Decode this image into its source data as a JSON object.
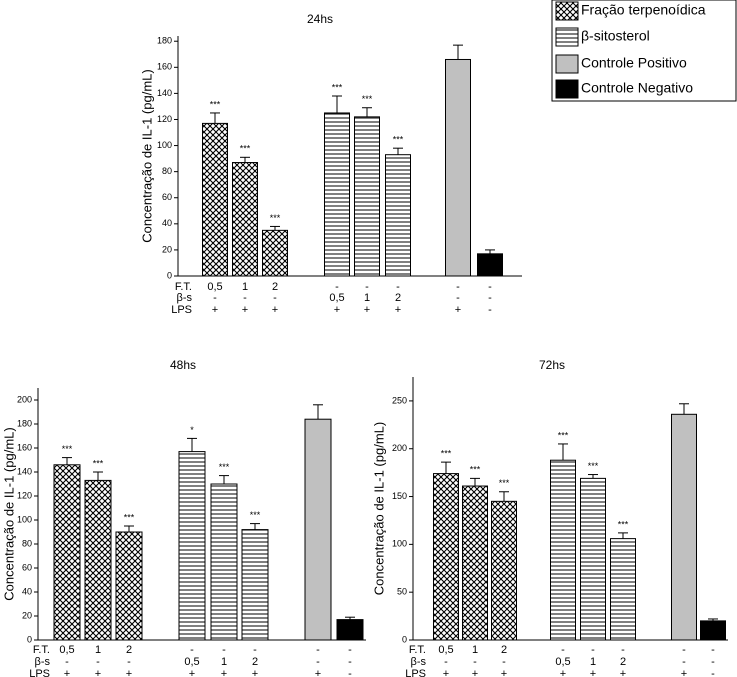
{
  "chart_data": [
    {
      "type": "bar",
      "title": "24hs",
      "y_label": "Concentração de IL-1 (pg/mL)",
      "ylim": [
        0,
        184
      ],
      "yticks": [
        0,
        20,
        40,
        60,
        80,
        100,
        120,
        140,
        160,
        180
      ],
      "series": [
        {
          "name": "Fração terpenoídica",
          "pattern": "crosshatch",
          "color": "#000000",
          "values": [
            117,
            87,
            35
          ],
          "errors": [
            8,
            4,
            3
          ],
          "annotations": [
            "***",
            "***",
            "***"
          ]
        },
        {
          "name": "β-sitosterol",
          "pattern": "hlines",
          "color": "#000000",
          "values": [
            125,
            122,
            93
          ],
          "errors": [
            13,
            7,
            5
          ],
          "annotations": [
            "***",
            "***",
            "***"
          ]
        },
        {
          "name": "Controle Positivo",
          "pattern": "solid",
          "color": "#c0c0c0",
          "values": [
            166
          ],
          "errors": [
            11
          ],
          "annotations": [
            null
          ]
        },
        {
          "name": "Controle Negativo",
          "pattern": "solid",
          "color": "#000000",
          "values": [
            17
          ],
          "errors": [
            3
          ],
          "annotations": [
            null
          ]
        }
      ],
      "treatment_rows": [
        {
          "label": "F.T.",
          "values": [
            "0,5",
            "1",
            "2",
            "-",
            "-",
            "-",
            "-",
            "-"
          ]
        },
        {
          "label": "β-s",
          "values": [
            "-",
            "-",
            "-",
            "0,5",
            "1",
            "2",
            "-",
            "-"
          ]
        },
        {
          "label": "LPS",
          "values": [
            "+",
            "+",
            "+",
            "+",
            "+",
            "+",
            "+",
            "-"
          ]
        }
      ]
    },
    {
      "type": "bar",
      "title": "48hs",
      "y_label": "Concentração de IL-1 (pg/mL)",
      "ylim": [
        0,
        210
      ],
      "yticks": [
        0,
        20,
        40,
        60,
        80,
        100,
        120,
        140,
        160,
        180,
        200
      ],
      "series": [
        {
          "pattern": "crosshatch",
          "color": "#000000",
          "values": [
            146,
            133,
            90
          ],
          "errors": [
            6,
            7,
            5
          ],
          "annotations": [
            "***",
            "***",
            "***"
          ]
        },
        {
          "pattern": "hlines",
          "color": "#000000",
          "values": [
            157,
            130,
            92
          ],
          "errors": [
            11,
            7,
            5
          ],
          "annotations": [
            "*",
            "***",
            "***"
          ]
        },
        {
          "pattern": "solid",
          "color": "#c0c0c0",
          "values": [
            184
          ],
          "errors": [
            12
          ],
          "annotations": [
            null
          ]
        },
        {
          "pattern": "solid",
          "color": "#000000",
          "values": [
            17
          ],
          "errors": [
            2
          ],
          "annotations": [
            null
          ]
        }
      ],
      "treatment_rows": [
        {
          "label": "F.T.",
          "values": [
            "0,5",
            "1",
            "2",
            "-",
            "-",
            "-",
            "-",
            "-"
          ]
        },
        {
          "label": "β-s",
          "values": [
            "-",
            "-",
            "-",
            "0,5",
            "1",
            "2",
            "-",
            "-"
          ]
        },
        {
          "label": "LPS",
          "values": [
            "+",
            "+",
            "+",
            "+",
            "+",
            "+",
            "+",
            "-"
          ]
        }
      ]
    },
    {
      "type": "bar",
      "title": "72hs",
      "y_label": "Concentração de IL-1 (pg/mL)",
      "ylim": [
        0,
        275
      ],
      "yticks": [
        0,
        50,
        100,
        150,
        200,
        250
      ],
      "series": [
        {
          "pattern": "crosshatch",
          "color": "#000000",
          "values": [
            174,
            161,
            145
          ],
          "errors": [
            12,
            8,
            10
          ],
          "annotations": [
            "***",
            "***",
            "***"
          ]
        },
        {
          "pattern": "hlines",
          "color": "#000000",
          "values": [
            188,
            169,
            106
          ],
          "errors": [
            17,
            4,
            6
          ],
          "annotations": [
            "***",
            "***",
            "***"
          ]
        },
        {
          "pattern": "solid",
          "color": "#c0c0c0",
          "values": [
            236
          ],
          "errors": [
            11
          ],
          "annotations": [
            null
          ]
        },
        {
          "pattern": "solid",
          "color": "#000000",
          "values": [
            20
          ],
          "errors": [
            2
          ],
          "annotations": [
            null
          ]
        }
      ],
      "treatment_rows": [
        {
          "label": "F.T.",
          "values": [
            "0,5",
            "1",
            "2",
            "-",
            "-",
            "-",
            "-",
            "-"
          ]
        },
        {
          "label": "β-s",
          "values": [
            "-",
            "-",
            "-",
            "0,5",
            "1",
            "2",
            "-",
            "-"
          ]
        },
        {
          "label": "LPS",
          "values": [
            "+",
            "+",
            "+",
            "+",
            "+",
            "+",
            "+",
            "-"
          ]
        }
      ]
    }
  ]
}
